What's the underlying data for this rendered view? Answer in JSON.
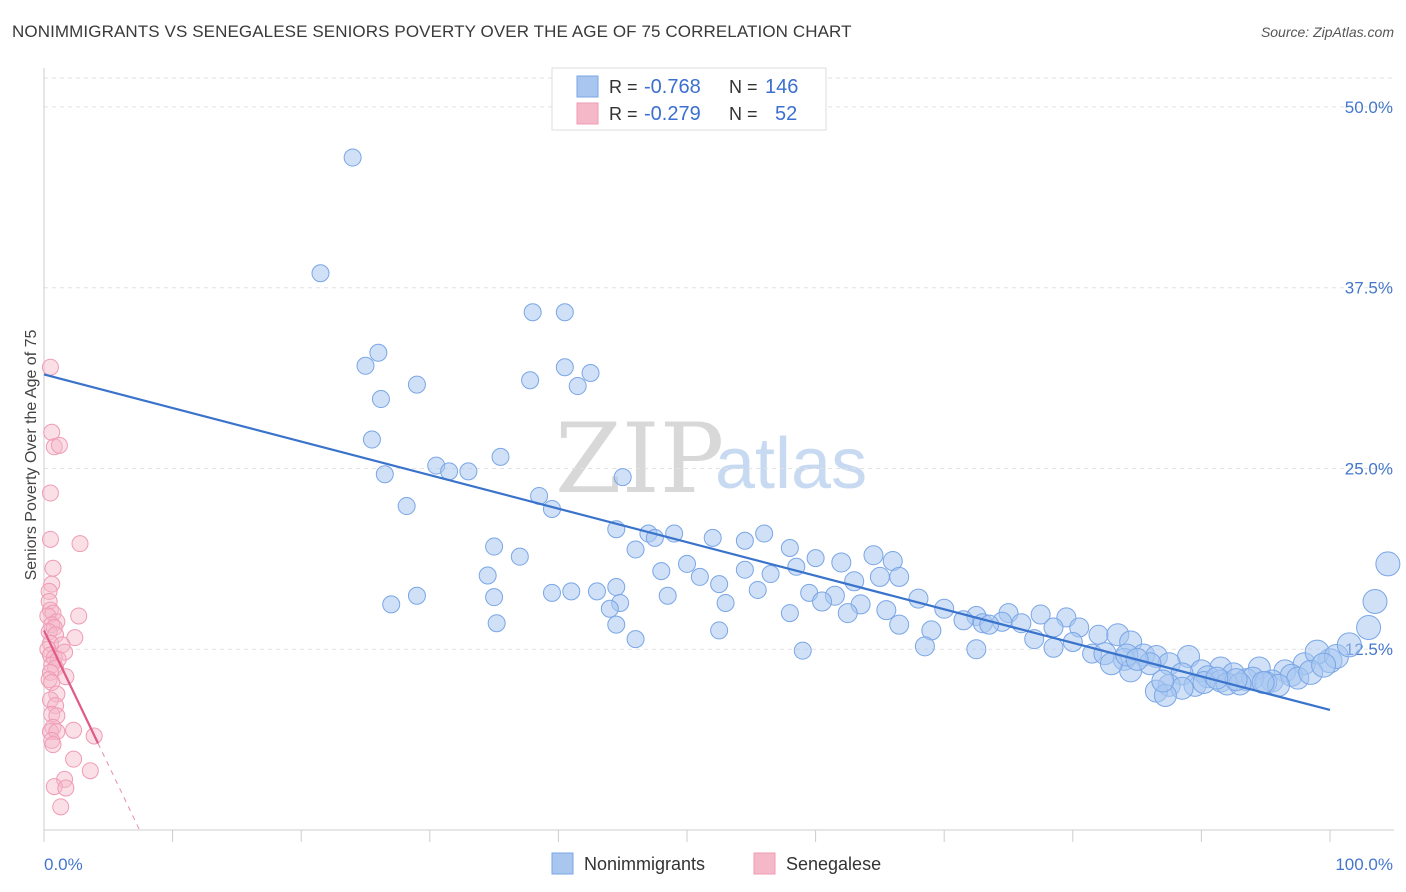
{
  "header": {
    "title": "NONIMMIGRANTS VS SENEGALESE SENIORS POVERTY OVER THE AGE OF 75 CORRELATION CHART",
    "source": "Source: ZipAtlas.com"
  },
  "watermark": {
    "zip": "ZIP",
    "atlas": "atlas"
  },
  "legend_top": {
    "rows": [
      {
        "r_label": "R =",
        "r_value": "-0.768",
        "n_label": "N =",
        "n_value": "146",
        "color": "#a9c6ef"
      },
      {
        "r_label": "R =",
        "r_value": "-0.279",
        "n_label": "N =",
        "n_value": "52",
        "color": "#f5b8c9"
      }
    ]
  },
  "chart_data": {
    "type": "scatter",
    "title": "NONIMMIGRANTS VS SENEGALESE SENIORS POVERTY OVER THE AGE OF 75 CORRELATION CHART",
    "xlabel": "",
    "ylabel": "Seniors Poverty Over the Age of 75",
    "xlim": [
      0,
      100
    ],
    "ylim": [
      0,
      52
    ],
    "x_tick_labels": [
      "0.0%",
      "100.0%"
    ],
    "y_tick_labels": [
      "12.5%",
      "25.0%",
      "37.5%",
      "50.0%"
    ],
    "y_ticks": [
      12.5,
      25.0,
      37.5,
      50.0
    ],
    "grid": true,
    "legend_position": "bottom-center",
    "series": [
      {
        "name": "Nonimmigrants",
        "color": "#7aa6e6",
        "trend": {
          "x": [
            0,
            100
          ],
          "y": [
            31.5,
            8.3
          ],
          "color": "#3a73cc"
        },
        "points": [
          [
            24,
            46.5
          ],
          [
            21.5,
            38.5
          ],
          [
            38,
            35.8
          ],
          [
            40.5,
            35.8
          ],
          [
            25,
            32.1
          ],
          [
            26,
            33.0
          ],
          [
            40.5,
            32.0
          ],
          [
            42.5,
            31.6
          ],
          [
            37.8,
            31.1
          ],
          [
            29,
            30.8
          ],
          [
            41.5,
            30.7
          ],
          [
            26.2,
            29.8
          ],
          [
            25.5,
            27.0
          ],
          [
            35.5,
            25.8
          ],
          [
            30.5,
            25.2
          ],
          [
            31.5,
            24.8
          ],
          [
            33,
            24.8
          ],
          [
            26.5,
            24.6
          ],
          [
            45,
            24.4
          ],
          [
            38.5,
            23.1
          ],
          [
            28.2,
            22.4
          ],
          [
            39.5,
            22.2
          ],
          [
            44.5,
            20.8
          ],
          [
            47,
            20.5
          ],
          [
            49,
            20.5
          ],
          [
            47.5,
            20.2
          ],
          [
            52,
            20.2
          ],
          [
            54.5,
            20.0
          ],
          [
            56,
            20.5
          ],
          [
            58,
            19.5
          ],
          [
            64.5,
            19.0
          ],
          [
            35,
            19.6
          ],
          [
            46,
            19.4
          ],
          [
            37,
            18.9
          ],
          [
            60,
            18.8
          ],
          [
            62,
            18.5
          ],
          [
            66,
            18.6
          ],
          [
            50,
            18.4
          ],
          [
            54.5,
            18.0
          ],
          [
            58.5,
            18.2
          ],
          [
            48,
            17.9
          ],
          [
            51,
            17.5
          ],
          [
            56.5,
            17.7
          ],
          [
            63,
            17.2
          ],
          [
            65,
            17.5
          ],
          [
            66.5,
            17.5
          ],
          [
            34.5,
            17.6
          ],
          [
            52.5,
            17.0
          ],
          [
            44.5,
            16.8
          ],
          [
            43,
            16.5
          ],
          [
            39.5,
            16.4
          ],
          [
            41,
            16.5
          ],
          [
            29,
            16.2
          ],
          [
            35,
            16.1
          ],
          [
            48.5,
            16.2
          ],
          [
            55.5,
            16.6
          ],
          [
            59.5,
            16.4
          ],
          [
            61.5,
            16.2
          ],
          [
            68,
            16.0
          ],
          [
            60.5,
            15.8
          ],
          [
            63.5,
            15.6
          ],
          [
            27,
            15.6
          ],
          [
            44.8,
            15.7
          ],
          [
            53,
            15.7
          ],
          [
            44,
            15.3
          ],
          [
            58,
            15.0
          ],
          [
            62.5,
            15.0
          ],
          [
            65.5,
            15.2
          ],
          [
            70,
            15.3
          ],
          [
            72.5,
            14.8
          ],
          [
            75,
            15.0
          ],
          [
            77.5,
            14.9
          ],
          [
            79.5,
            14.7
          ],
          [
            71.5,
            14.5
          ],
          [
            73,
            14.3
          ],
          [
            74.5,
            14.4
          ],
          [
            76,
            14.3
          ],
          [
            35.2,
            14.3
          ],
          [
            44.5,
            14.2
          ],
          [
            66.5,
            14.2
          ],
          [
            73.5,
            14.2
          ],
          [
            78.5,
            14.0
          ],
          [
            80.5,
            14.0
          ],
          [
            52.5,
            13.8
          ],
          [
            69,
            13.8
          ],
          [
            82,
            13.5
          ],
          [
            83.5,
            13.5
          ],
          [
            46,
            13.2
          ],
          [
            77,
            13.2
          ],
          [
            80,
            13.0
          ],
          [
            84.5,
            13.0
          ],
          [
            68.5,
            12.7
          ],
          [
            72.5,
            12.5
          ],
          [
            78.5,
            12.6
          ],
          [
            81.5,
            12.2
          ],
          [
            85.5,
            12.1
          ],
          [
            86.5,
            12.0
          ],
          [
            89,
            12.0
          ],
          [
            59,
            12.4
          ],
          [
            82.5,
            12.2
          ],
          [
            84,
            11.8
          ],
          [
            87.5,
            11.5
          ],
          [
            91.5,
            11.2
          ],
          [
            84.5,
            11.0
          ],
          [
            86,
            11.5
          ],
          [
            90,
            11.0
          ],
          [
            92.5,
            10.8
          ],
          [
            94.5,
            11.2
          ],
          [
            96.5,
            11.0
          ],
          [
            98,
            11.5
          ],
          [
            100,
            11.7
          ],
          [
            99,
            12.3
          ],
          [
            88.5,
            10.8
          ],
          [
            90.5,
            10.6
          ],
          [
            91.5,
            10.3
          ],
          [
            93.5,
            10.4
          ],
          [
            95.5,
            10.3
          ],
          [
            97,
            10.7
          ],
          [
            97.5,
            10.5
          ],
          [
            94,
            10.5
          ],
          [
            89.5,
            10.0
          ],
          [
            92,
            10.1
          ],
          [
            95,
            10.2
          ],
          [
            87.5,
            10.0
          ],
          [
            93,
            10.1
          ],
          [
            96,
            10.0
          ],
          [
            92.7,
            10.4
          ],
          [
            88.5,
            9.8
          ],
          [
            86.5,
            9.6
          ],
          [
            87.2,
            9.3
          ],
          [
            94.8,
            10.2
          ],
          [
            90.2,
            10.2
          ],
          [
            91.2,
            10.5
          ],
          [
            100.5,
            12.0
          ],
          [
            101.5,
            12.8
          ],
          [
            103,
            14.0
          ],
          [
            103.5,
            15.8
          ],
          [
            104.5,
            18.4
          ],
          [
            87,
            10.3
          ],
          [
            98.5,
            10.9
          ],
          [
            99.5,
            11.4
          ],
          [
            83,
            11.5
          ],
          [
            84.2,
            12.1
          ],
          [
            85,
            11.8
          ]
        ]
      },
      {
        "name": "Senegalese",
        "color": "#f09bb5",
        "trend": {
          "x": [
            0,
            4.2
          ],
          "y": [
            13.8,
            6.0
          ],
          "color": "#e05a87"
        },
        "points": [
          [
            0.5,
            32.0
          ],
          [
            0.6,
            27.5
          ],
          [
            0.8,
            26.5
          ],
          [
            1.2,
            26.6
          ],
          [
            0.5,
            23.3
          ],
          [
            0.5,
            20.1
          ],
          [
            2.8,
            19.8
          ],
          [
            0.7,
            18.1
          ],
          [
            0.6,
            17.0
          ],
          [
            0.4,
            16.5
          ],
          [
            0.4,
            15.8
          ],
          [
            0.5,
            15.2
          ],
          [
            0.7,
            15.0
          ],
          [
            0.3,
            14.8
          ],
          [
            1.0,
            14.4
          ],
          [
            2.7,
            14.8
          ],
          [
            0.6,
            14.2
          ],
          [
            0.8,
            14.0
          ],
          [
            0.4,
            13.7
          ],
          [
            0.9,
            13.5
          ],
          [
            2.4,
            13.3
          ],
          [
            0.5,
            12.9
          ],
          [
            1.4,
            12.8
          ],
          [
            0.3,
            12.5
          ],
          [
            1.6,
            12.3
          ],
          [
            0.5,
            12.1
          ],
          [
            0.8,
            11.9
          ],
          [
            1.1,
            11.8
          ],
          [
            0.6,
            11.4
          ],
          [
            0.9,
            11.2
          ],
          [
            0.5,
            10.9
          ],
          [
            1.7,
            10.6
          ],
          [
            0.4,
            10.4
          ],
          [
            0.6,
            10.2
          ],
          [
            1.0,
            9.4
          ],
          [
            0.5,
            9.0
          ],
          [
            0.9,
            8.6
          ],
          [
            0.6,
            8.0
          ],
          [
            1.0,
            7.9
          ],
          [
            0.7,
            7.1
          ],
          [
            0.5,
            6.8
          ],
          [
            2.3,
            6.9
          ],
          [
            1.0,
            6.8
          ],
          [
            0.6,
            6.2
          ],
          [
            3.9,
            6.5
          ],
          [
            0.7,
            5.9
          ],
          [
            2.3,
            4.9
          ],
          [
            3.6,
            4.1
          ],
          [
            1.6,
            3.5
          ],
          [
            0.8,
            3.0
          ],
          [
            1.7,
            2.9
          ],
          [
            1.3,
            1.6
          ]
        ]
      }
    ]
  },
  "bottom_legend": {
    "items": [
      {
        "label": "Nonimmigrants",
        "color": "#a9c6ef"
      },
      {
        "label": "Senegalese",
        "color": "#f5b8c9"
      }
    ]
  }
}
